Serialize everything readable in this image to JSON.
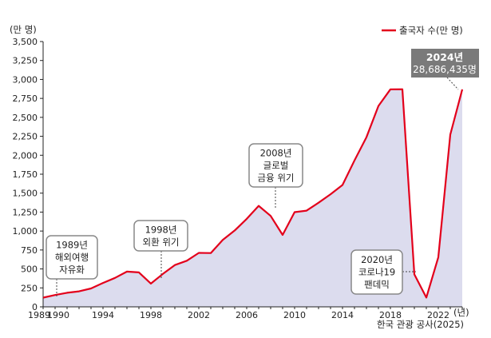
{
  "chart_data": {
    "type": "area",
    "ylabel": "(만 명)",
    "xlabel": "(년)",
    "ylim": [
      0,
      3500
    ],
    "xlim": [
      1989,
      2024
    ],
    "yticks": [
      0,
      250,
      500,
      750,
      1000,
      1250,
      1500,
      1750,
      2000,
      2250,
      2500,
      2750,
      3000,
      3250,
      3500
    ],
    "ytick_labels": [
      "0",
      "250",
      "500",
      "750",
      "1,000",
      "1,250",
      "1,500",
      "1,750",
      "2,000",
      "2,250",
      "2,500",
      "2,750",
      "3,000",
      "3,250",
      "3,500"
    ],
    "xticks": [
      1989,
      1990,
      1994,
      1998,
      2002,
      2006,
      2010,
      2014,
      2018,
      2022
    ],
    "grid": false,
    "legend": "top-right",
    "series": [
      {
        "name": "출국자 수(만 명)",
        "color": "#e3001b",
        "fill": "#dcdcee",
        "x": [
          1989,
          1990,
          1991,
          1992,
          1993,
          1994,
          1995,
          1996,
          1997,
          1998,
          1999,
          2000,
          2001,
          2002,
          2003,
          2004,
          2005,
          2006,
          2007,
          2008,
          2009,
          2010,
          2011,
          2012,
          2013,
          2014,
          2015,
          2016,
          2017,
          2018,
          2019,
          2020,
          2021,
          2022,
          2023,
          2024
        ],
        "values": [
          121,
          156,
          186,
          204,
          242,
          315,
          382,
          465,
          454,
          307,
          434,
          551,
          608,
          712,
          709,
          883,
          1008,
          1161,
          1333,
          1200,
          949,
          1249,
          1269,
          1374,
          1485,
          1608,
          1931,
          2238,
          2650,
          2870,
          2871,
          428,
          122,
          655,
          2272,
          2869
        ]
      }
    ],
    "annotations": [
      {
        "id": "1989",
        "lines": [
          "1989년",
          "해외여행",
          "자유화"
        ]
      },
      {
        "id": "1998",
        "lines": [
          "1998년",
          "외환 위기"
        ]
      },
      {
        "id": "2008",
        "lines": [
          "2008년",
          "글로벌",
          "금융 위기"
        ]
      },
      {
        "id": "2020",
        "lines": [
          "2020년",
          "코로나19",
          "팬데믹"
        ]
      }
    ],
    "highlight": {
      "title": "2024년",
      "value": "28,686,435명",
      "bg": "#7a7a7a"
    },
    "source": "한국 관광 공사(2025)"
  }
}
